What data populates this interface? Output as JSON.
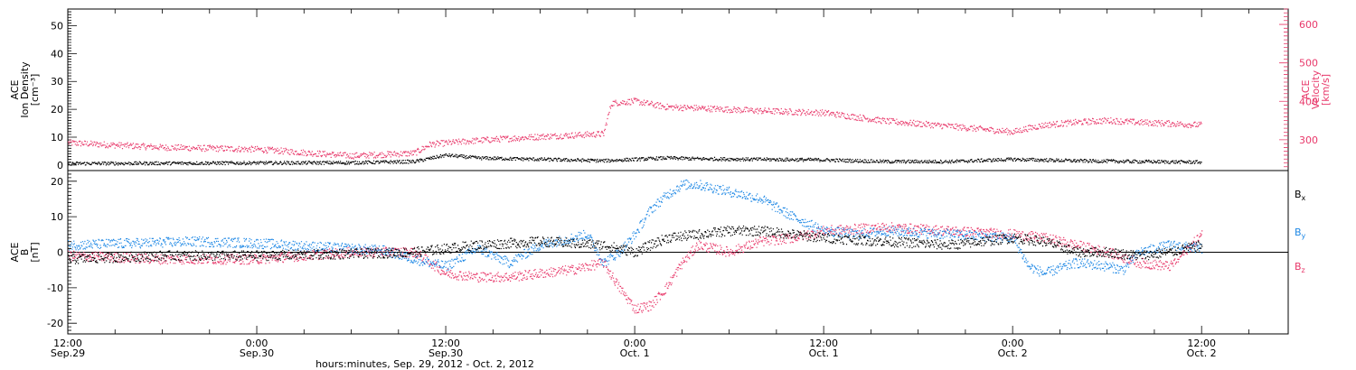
{
  "figure": {
    "xlabel": "hours:minutes, Sep. 29, 2012 - Oct.  2, 2012",
    "x_ticks": [
      {
        "time": 0,
        "top": "12:00",
        "bottom": "Sep.29"
      },
      {
        "time": 12,
        "top": "0:00",
        "bottom": "Sep.30"
      },
      {
        "time": 24,
        "top": "12:00",
        "bottom": "Sep.30"
      },
      {
        "time": 36,
        "top": "0:00",
        "bottom": "Oct. 1"
      },
      {
        "time": 48,
        "top": "12:00",
        "bottom": "Oct. 1"
      },
      {
        "time": 60,
        "top": "0:00",
        "bottom": "Oct. 2"
      },
      {
        "time": 72,
        "top": "12:00",
        "bottom": "Oct. 2"
      }
    ],
    "colors": {
      "black": "#000000",
      "blue": "#1e88e5",
      "pink": "#e8386a"
    }
  },
  "chart_data": [
    {
      "type": "scatter",
      "title": "",
      "x_units": "hours since Sep. 29, 2012 12:00 UT",
      "xlim": [
        0,
        77.5
      ],
      "ylabel_lines": [
        "ACE",
        "Ion Density",
        "[cm⁻³]"
      ],
      "ylim": [
        -2,
        56
      ],
      "yticks": [
        0,
        10,
        20,
        30,
        40,
        50
      ],
      "y2label_lines": [
        "ACE",
        "Velocity",
        "[km/s]"
      ],
      "y2lim": [
        220,
        640
      ],
      "y2ticks": [
        300,
        400,
        500,
        600
      ],
      "series": [
        {
          "name": "Ion Density",
          "axis": "left",
          "color": "#000000",
          "x": [
            0,
            6,
            12,
            18,
            22,
            24,
            26,
            30,
            34,
            36,
            38,
            40,
            44,
            48,
            52,
            56,
            60,
            64,
            68,
            72
          ],
          "y": [
            0.5,
            0.6,
            0.7,
            0.8,
            1.2,
            3.5,
            2.5,
            2.0,
            1.5,
            2.0,
            2.5,
            2.2,
            2.0,
            1.8,
            1.2,
            1.2,
            2.0,
            1.5,
            1.2,
            1.0
          ]
        },
        {
          "name": "Velocity",
          "axis": "right",
          "color": "#e8386a",
          "x": [
            0,
            6,
            12,
            18,
            22,
            23,
            26,
            30,
            34,
            34.5,
            36,
            38,
            40,
            44,
            48,
            52,
            56,
            60,
            61,
            62,
            64,
            66,
            68,
            70,
            72
          ],
          "y": [
            292,
            280,
            275,
            258,
            265,
            288,
            298,
            308,
            315,
            395,
            400,
            385,
            382,
            375,
            370,
            348,
            335,
            320,
            330,
            338,
            345,
            350,
            345,
            342,
            338
          ]
        }
      ]
    },
    {
      "type": "scatter",
      "title": "",
      "x_units": "hours since Sep. 29, 2012 12:00 UT",
      "xlim": [
        0,
        77.5
      ],
      "ylabel_lines": [
        "ACE",
        "B",
        "[nT]"
      ],
      "ylim": [
        -23,
        23
      ],
      "yticks": [
        -20,
        -10,
        0,
        10,
        20
      ],
      "series": [
        {
          "name": "Bₓ",
          "legend": {
            "main": "B",
            "sub": "x"
          },
          "color": "#000000",
          "x": [
            0,
            6,
            12,
            18,
            22,
            24,
            26,
            30,
            34,
            35,
            36,
            37,
            38,
            40,
            42,
            44,
            46,
            48,
            52,
            56,
            60,
            62,
            64,
            66,
            68,
            70,
            72
          ],
          "y": [
            -2,
            -1,
            -1,
            -0.5,
            0,
            1,
            2,
            3,
            2,
            1,
            0,
            2,
            4,
            5,
            6,
            6,
            5,
            4,
            3,
            2,
            4,
            3,
            0,
            0,
            -1,
            0,
            2
          ]
        },
        {
          "name": "Bᵧ",
          "legend": {
            "main": "B",
            "sub": "y"
          },
          "color": "#1e88e5",
          "x": [
            0,
            4,
            8,
            12,
            16,
            20,
            22,
            24,
            26,
            28,
            30,
            32,
            33,
            34,
            35,
            36,
            37,
            38,
            39,
            40,
            42,
            44,
            46,
            48,
            50,
            52,
            56,
            60,
            61,
            62,
            64,
            66,
            67,
            68,
            70,
            72
          ],
          "y": [
            2,
            2.5,
            3,
            2.5,
            1.5,
            0.5,
            -2,
            -4,
            1,
            -3,
            2,
            4,
            5,
            -3,
            0,
            5,
            12,
            16,
            19,
            19,
            17,
            15,
            10,
            6,
            5,
            6,
            5,
            4,
            -4,
            -6,
            -3,
            -4,
            -5,
            0,
            2,
            1
          ]
        },
        {
          "name": "Bᵩ",
          "legend": {
            "main": "B",
            "sub": "z"
          },
          "color": "#e8386a",
          "x": [
            0,
            6,
            12,
            18,
            22,
            24,
            26,
            28,
            30,
            32,
            34,
            35,
            36,
            37,
            38,
            39,
            40,
            42,
            44,
            46,
            48,
            52,
            56,
            60,
            62,
            64,
            66,
            68,
            70,
            72
          ],
          "y": [
            -1,
            -2,
            -2,
            0,
            0,
            -6,
            -7,
            -7,
            -6,
            -5,
            -3,
            -10,
            -16,
            -15,
            -10,
            -3,
            2,
            0,
            3,
            4,
            6,
            7,
            6,
            5,
            4,
            2,
            0,
            -3,
            -4,
            5
          ]
        }
      ]
    }
  ]
}
